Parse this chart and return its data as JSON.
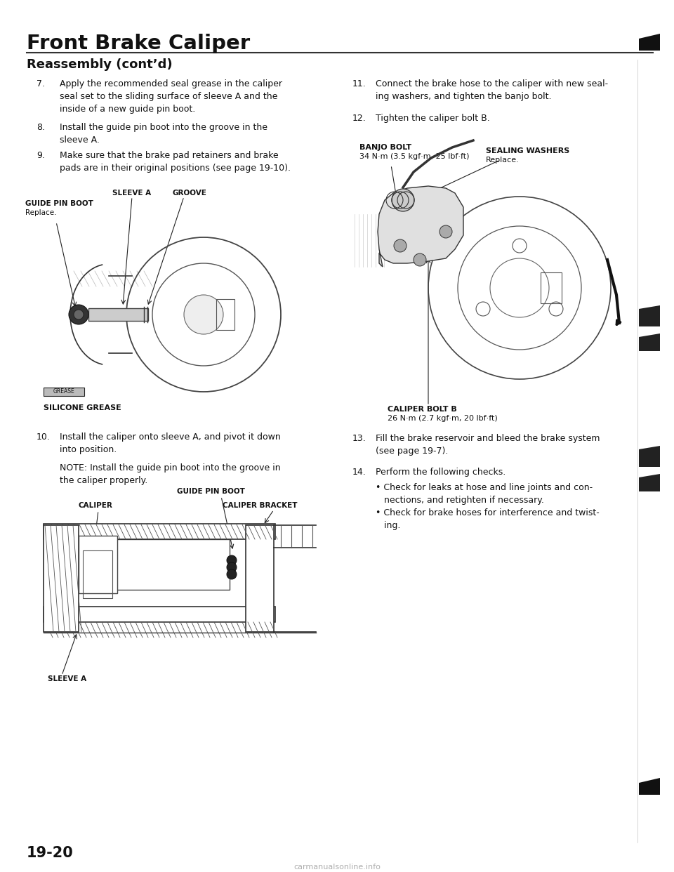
{
  "page_bg": "#ffffff",
  "title": "Front Brake Caliper",
  "subtitle": "Reassembly (cont’d)",
  "page_num": "19-20",
  "footer_text": "carmanualsonline.info",
  "step7": "Apply the recommended seal grease in the caliper\nseal set to the sliding surface of sleeve A and the\ninside of a new guide pin boot.",
  "step8": "Install the guide pin boot into the groove in the\nsleeve A.",
  "step9": "Make sure that the brake pad retainers and brake\npads are in their original positions (see page 19-10).",
  "step10_a": "Install the caliper onto sleeve A, and pivot it down\ninto position.",
  "step10_b": "NOTE: Install the guide pin boot into the groove in\nthe caliper properly.",
  "step11": "Connect the brake hose to the caliper with new seal-\ning washers, and tighten the banjo bolt.",
  "step12": "Tighten the caliper bolt B.",
  "step13": "Fill the brake reservoir and bleed the brake system\n(see page 19-7).",
  "step14_a": "Perform the following checks.",
  "step14_b": "• Check for leaks at hose and line joints and con-\n   nections, and retighten if necessary.",
  "step14_c": "• Check for brake hoses for interference and twist-\n   ing.",
  "banjo_label1": "BANJO BOLT",
  "banjo_label2": "34 N·m (3.5 kgf·m, 25 lbf·ft)",
  "sealing_label1": "SEALING WASHERS",
  "sealing_label2": "Replace.",
  "caliper_bolt_label1": "CALIPER BOLT B",
  "caliper_bolt_label2": "26 N·m (2.7 kgf·m, 20 lbf·ft)",
  "grease_label": "SILICONE GREASE",
  "guide_pin_label": "GUIDE PIN BOOT",
  "guide_pin_sub": "Replace.",
  "sleeve_a_label": "SLEEVE A",
  "groove_label": "GROOVE",
  "caliper_label": "CALIPER",
  "caliper_bracket_label": "CALIPER BRACKET",
  "guide_pin_label2": "GUIDE PIN BOOT",
  "sleeve_a_label2": "SLEEVE A"
}
